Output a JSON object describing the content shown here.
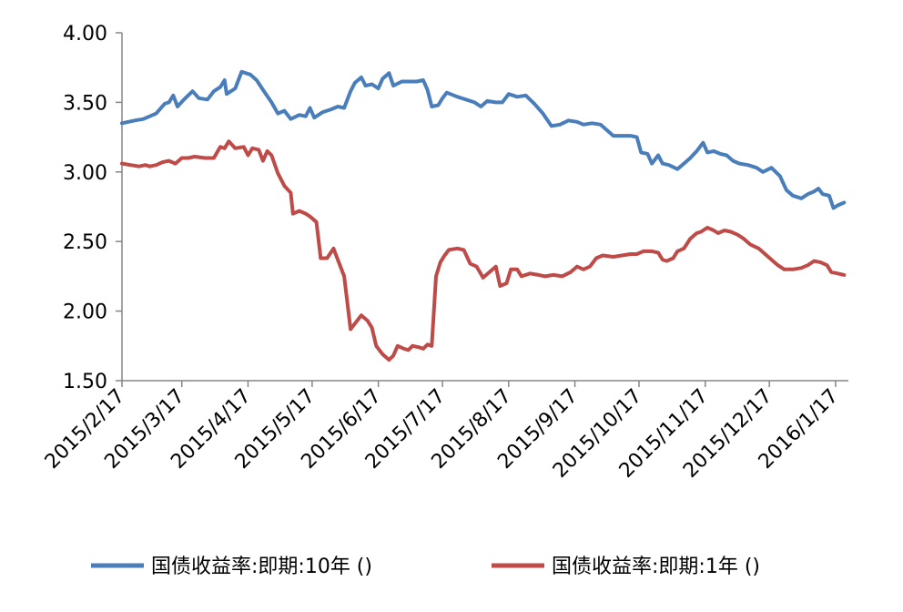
{
  "chart_data": {
    "type": "line",
    "title": "",
    "xlabel": "",
    "ylabel": "",
    "ylim": [
      1.5,
      4.0
    ],
    "yticks": [
      "4.00",
      "3.50",
      "3.00",
      "2.50",
      "2.00",
      "1.50"
    ],
    "xticks": [
      "2015/2/17",
      "2015/3/17",
      "2015/4/17",
      "2015/5/17",
      "2015/6/17",
      "2015/7/17",
      "2015/8/17",
      "2015/9/17",
      "2015/10/17",
      "2015/11/17",
      "2015/12/17",
      "2016/1/17"
    ],
    "grid": false,
    "legend_position": "bottom",
    "series": [
      {
        "name": "国债收益率:即期:10年 ()",
        "color": "#4a7ebb",
        "points": [
          [
            "2015-02-17",
            3.35
          ],
          [
            "2015-02-23",
            3.37
          ],
          [
            "2015-02-27",
            3.38
          ],
          [
            "2015-03-02",
            3.4
          ],
          [
            "2015-03-05",
            3.42
          ],
          [
            "2015-03-09",
            3.49
          ],
          [
            "2015-03-11",
            3.5
          ],
          [
            "2015-03-13",
            3.55
          ],
          [
            "2015-03-15",
            3.47
          ],
          [
            "2015-03-18",
            3.52
          ],
          [
            "2015-03-22",
            3.58
          ],
          [
            "2015-03-25",
            3.53
          ],
          [
            "2015-03-29",
            3.52
          ],
          [
            "2015-04-01",
            3.58
          ],
          [
            "2015-04-04",
            3.61
          ],
          [
            "2015-04-06",
            3.66
          ],
          [
            "2015-04-07",
            3.56
          ],
          [
            "2015-04-11",
            3.6
          ],
          [
            "2015-04-14",
            3.72
          ],
          [
            "2015-04-18",
            3.7
          ],
          [
            "2015-04-21",
            3.66
          ],
          [
            "2015-04-24",
            3.59
          ],
          [
            "2015-04-28",
            3.5
          ],
          [
            "2015-05-01",
            3.42
          ],
          [
            "2015-05-04",
            3.44
          ],
          [
            "2015-05-07",
            3.38
          ],
          [
            "2015-05-11",
            3.41
          ],
          [
            "2015-05-14",
            3.4
          ],
          [
            "2015-05-16",
            3.46
          ],
          [
            "2015-05-18",
            3.39
          ],
          [
            "2015-05-22",
            3.43
          ],
          [
            "2015-05-26",
            3.45
          ],
          [
            "2015-05-29",
            3.47
          ],
          [
            "2015-06-01",
            3.46
          ],
          [
            "2015-06-04",
            3.58
          ],
          [
            "2015-06-06",
            3.64
          ],
          [
            "2015-06-09",
            3.68
          ],
          [
            "2015-06-11",
            3.62
          ],
          [
            "2015-06-14",
            3.63
          ],
          [
            "2015-06-17",
            3.6
          ],
          [
            "2015-06-19",
            3.67
          ],
          [
            "2015-06-22",
            3.71
          ],
          [
            "2015-06-24",
            3.62
          ],
          [
            "2015-06-28",
            3.65
          ],
          [
            "2015-07-01",
            3.65
          ],
          [
            "2015-07-05",
            3.65
          ],
          [
            "2015-07-08",
            3.66
          ],
          [
            "2015-07-10",
            3.59
          ],
          [
            "2015-07-12",
            3.47
          ],
          [
            "2015-07-15",
            3.48
          ],
          [
            "2015-07-17",
            3.53
          ],
          [
            "2015-07-19",
            3.57
          ],
          [
            "2015-07-24",
            3.54
          ],
          [
            "2015-07-28",
            3.52
          ],
          [
            "2015-08-01",
            3.5
          ],
          [
            "2015-08-04",
            3.47
          ],
          [
            "2015-08-07",
            3.51
          ],
          [
            "2015-08-11",
            3.5
          ],
          [
            "2015-08-14",
            3.5
          ],
          [
            "2015-08-17",
            3.56
          ],
          [
            "2015-08-21",
            3.54
          ],
          [
            "2015-08-25",
            3.55
          ],
          [
            "2015-08-29",
            3.49
          ],
          [
            "2015-09-02",
            3.42
          ],
          [
            "2015-09-06",
            3.33
          ],
          [
            "2015-09-10",
            3.34
          ],
          [
            "2015-09-14",
            3.37
          ],
          [
            "2015-09-18",
            3.36
          ],
          [
            "2015-09-21",
            3.34
          ],
          [
            "2015-09-25",
            3.35
          ],
          [
            "2015-09-29",
            3.34
          ],
          [
            "2015-10-02",
            3.3
          ],
          [
            "2015-10-05",
            3.26
          ],
          [
            "2015-10-09",
            3.26
          ],
          [
            "2015-10-13",
            3.26
          ],
          [
            "2015-10-16",
            3.25
          ],
          [
            "2015-10-18",
            3.14
          ],
          [
            "2015-10-21",
            3.13
          ],
          [
            "2015-10-23",
            3.06
          ],
          [
            "2015-10-26",
            3.12
          ],
          [
            "2015-10-28",
            3.06
          ],
          [
            "2015-10-31",
            3.05
          ],
          [
            "2015-11-04",
            3.02
          ],
          [
            "2015-11-07",
            3.06
          ],
          [
            "2015-11-10",
            3.1
          ],
          [
            "2015-11-13",
            3.15
          ],
          [
            "2015-11-16",
            3.21
          ],
          [
            "2015-11-18",
            3.14
          ],
          [
            "2015-11-21",
            3.15
          ],
          [
            "2015-11-24",
            3.13
          ],
          [
            "2015-11-27",
            3.12
          ],
          [
            "2015-11-30",
            3.08
          ],
          [
            "2015-12-03",
            3.06
          ],
          [
            "2015-12-07",
            3.05
          ],
          [
            "2015-12-11",
            3.03
          ],
          [
            "2015-12-14",
            3.0
          ],
          [
            "2015-12-18",
            3.03
          ],
          [
            "2015-12-22",
            2.97
          ],
          [
            "2015-12-25",
            2.87
          ],
          [
            "2015-12-28",
            2.83
          ],
          [
            "2016-01-01",
            2.81
          ],
          [
            "2016-01-04",
            2.84
          ],
          [
            "2016-01-07",
            2.86
          ],
          [
            "2016-01-09",
            2.88
          ],
          [
            "2016-01-11",
            2.84
          ],
          [
            "2016-01-14",
            2.83
          ],
          [
            "2016-01-16",
            2.74
          ],
          [
            "2016-01-18",
            2.76
          ],
          [
            "2016-01-21",
            2.78
          ]
        ]
      },
      {
        "name": "国债收益率:即期:1年 ()",
        "color": "#be4b48",
        "points": [
          [
            "2015-02-17",
            3.06
          ],
          [
            "2015-02-21",
            3.05
          ],
          [
            "2015-02-25",
            3.04
          ],
          [
            "2015-02-28",
            3.05
          ],
          [
            "2015-03-02",
            3.04
          ],
          [
            "2015-03-05",
            3.05
          ],
          [
            "2015-03-08",
            3.07
          ],
          [
            "2015-03-11",
            3.08
          ],
          [
            "2015-03-14",
            3.06
          ],
          [
            "2015-03-17",
            3.1
          ],
          [
            "2015-03-20",
            3.1
          ],
          [
            "2015-03-23",
            3.11
          ],
          [
            "2015-03-28",
            3.1
          ],
          [
            "2015-04-01",
            3.1
          ],
          [
            "2015-04-04",
            3.18
          ],
          [
            "2015-04-06",
            3.17
          ],
          [
            "2015-04-08",
            3.22
          ],
          [
            "2015-04-11",
            3.17
          ],
          [
            "2015-04-15",
            3.18
          ],
          [
            "2015-04-17",
            3.12
          ],
          [
            "2015-04-19",
            3.17
          ],
          [
            "2015-04-22",
            3.16
          ],
          [
            "2015-04-24",
            3.08
          ],
          [
            "2015-04-26",
            3.15
          ],
          [
            "2015-04-28",
            3.12
          ],
          [
            "2015-05-01",
            2.99
          ],
          [
            "2015-05-04",
            2.9
          ],
          [
            "2015-05-07",
            2.85
          ],
          [
            "2015-05-08",
            2.7
          ],
          [
            "2015-05-11",
            2.72
          ],
          [
            "2015-05-14",
            2.7
          ],
          [
            "2015-05-16",
            2.68
          ],
          [
            "2015-05-19",
            2.64
          ],
          [
            "2015-05-21",
            2.38
          ],
          [
            "2015-05-24",
            2.38
          ],
          [
            "2015-05-27",
            2.45
          ],
          [
            "2015-05-29",
            2.37
          ],
          [
            "2015-06-01",
            2.25
          ],
          [
            "2015-06-04",
            1.87
          ],
          [
            "2015-06-07",
            1.93
          ],
          [
            "2015-06-09",
            1.97
          ],
          [
            "2015-06-12",
            1.93
          ],
          [
            "2015-06-14",
            1.88
          ],
          [
            "2015-06-16",
            1.75
          ],
          [
            "2015-06-19",
            1.69
          ],
          [
            "2015-06-22",
            1.65
          ],
          [
            "2015-06-24",
            1.68
          ],
          [
            "2015-06-26",
            1.75
          ],
          [
            "2015-06-29",
            1.73
          ],
          [
            "2015-07-01",
            1.72
          ],
          [
            "2015-07-03",
            1.75
          ],
          [
            "2015-07-06",
            1.74
          ],
          [
            "2015-07-08",
            1.73
          ],
          [
            "2015-07-10",
            1.76
          ],
          [
            "2015-07-12",
            1.75
          ],
          [
            "2015-07-14",
            2.25
          ],
          [
            "2015-07-16",
            2.35
          ],
          [
            "2015-07-18",
            2.4
          ],
          [
            "2015-07-20",
            2.44
          ],
          [
            "2015-07-24",
            2.45
          ],
          [
            "2015-07-27",
            2.44
          ],
          [
            "2015-07-30",
            2.34
          ],
          [
            "2015-08-02",
            2.32
          ],
          [
            "2015-08-05",
            2.24
          ],
          [
            "2015-08-08",
            2.28
          ],
          [
            "2015-08-11",
            2.32
          ],
          [
            "2015-08-13",
            2.18
          ],
          [
            "2015-08-16",
            2.2
          ],
          [
            "2015-08-18",
            2.3
          ],
          [
            "2015-08-21",
            2.3
          ],
          [
            "2015-08-23",
            2.25
          ],
          [
            "2015-08-27",
            2.27
          ],
          [
            "2015-08-31",
            2.26
          ],
          [
            "2015-09-03",
            2.25
          ],
          [
            "2015-09-07",
            2.26
          ],
          [
            "2015-09-11",
            2.25
          ],
          [
            "2015-09-15",
            2.28
          ],
          [
            "2015-09-18",
            2.32
          ],
          [
            "2015-09-21",
            2.3
          ],
          [
            "2015-09-24",
            2.32
          ],
          [
            "2015-09-27",
            2.38
          ],
          [
            "2015-09-30",
            2.4
          ],
          [
            "2015-10-05",
            2.39
          ],
          [
            "2015-10-09",
            2.4
          ],
          [
            "2015-10-13",
            2.41
          ],
          [
            "2015-10-16",
            2.41
          ],
          [
            "2015-10-19",
            2.43
          ],
          [
            "2015-10-23",
            2.43
          ],
          [
            "2015-10-26",
            2.42
          ],
          [
            "2015-10-28",
            2.37
          ],
          [
            "2015-10-30",
            2.36
          ],
          [
            "2015-11-02",
            2.38
          ],
          [
            "2015-11-04",
            2.43
          ],
          [
            "2015-11-07",
            2.45
          ],
          [
            "2015-11-10",
            2.52
          ],
          [
            "2015-11-13",
            2.56
          ],
          [
            "2015-11-15",
            2.57
          ],
          [
            "2015-11-18",
            2.6
          ],
          [
            "2015-11-21",
            2.58
          ],
          [
            "2015-11-23",
            2.56
          ],
          [
            "2015-11-26",
            2.58
          ],
          [
            "2015-11-29",
            2.57
          ],
          [
            "2015-12-02",
            2.55
          ],
          [
            "2015-12-05",
            2.52
          ],
          [
            "2015-12-08",
            2.48
          ],
          [
            "2015-12-12",
            2.45
          ],
          [
            "2015-12-15",
            2.41
          ],
          [
            "2015-12-18",
            2.37
          ],
          [
            "2015-12-21",
            2.33
          ],
          [
            "2015-12-24",
            2.3
          ],
          [
            "2015-12-28",
            2.3
          ],
          [
            "2016-01-01",
            2.31
          ],
          [
            "2016-01-04",
            2.33
          ],
          [
            "2016-01-07",
            2.36
          ],
          [
            "2016-01-10",
            2.35
          ],
          [
            "2016-01-13",
            2.33
          ],
          [
            "2016-01-15",
            2.28
          ],
          [
            "2016-01-18",
            2.27
          ],
          [
            "2016-01-21",
            2.26
          ]
        ]
      }
    ]
  }
}
